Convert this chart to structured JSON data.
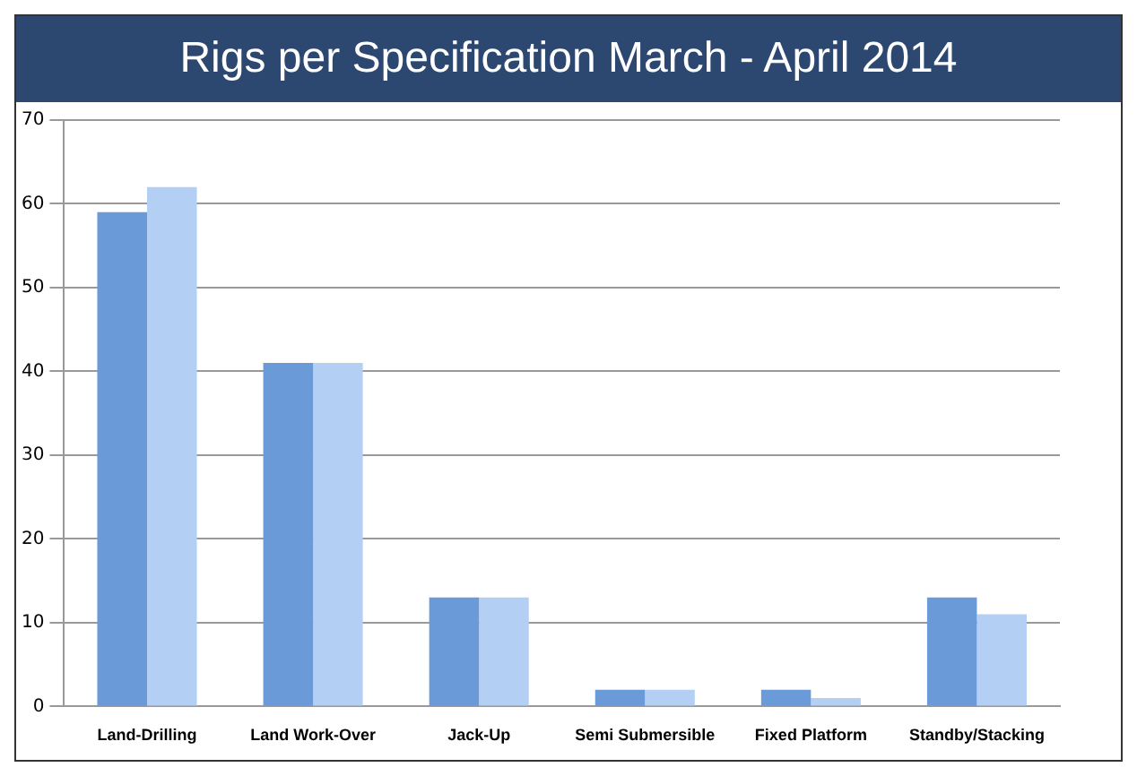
{
  "chart_data": {
    "type": "bar",
    "title": "Rigs per Specification March - April 2014",
    "categories": [
      "Land-Drilling",
      "Land Work-Over",
      "Jack-Up",
      "Semi Submersible",
      "Fixed Platform",
      "Standby/Stacking"
    ],
    "series": [
      {
        "color": "#6a9bd8",
        "values": [
          59,
          41,
          13,
          2,
          2,
          13
        ]
      },
      {
        "color": "#b3cff3",
        "values": [
          62,
          41,
          13,
          2,
          1,
          11
        ]
      }
    ],
    "ylim": [
      0,
      70
    ],
    "yticks": [
      0,
      10,
      20,
      30,
      40,
      50,
      60,
      70
    ],
    "grid": "y",
    "legend": false
  }
}
